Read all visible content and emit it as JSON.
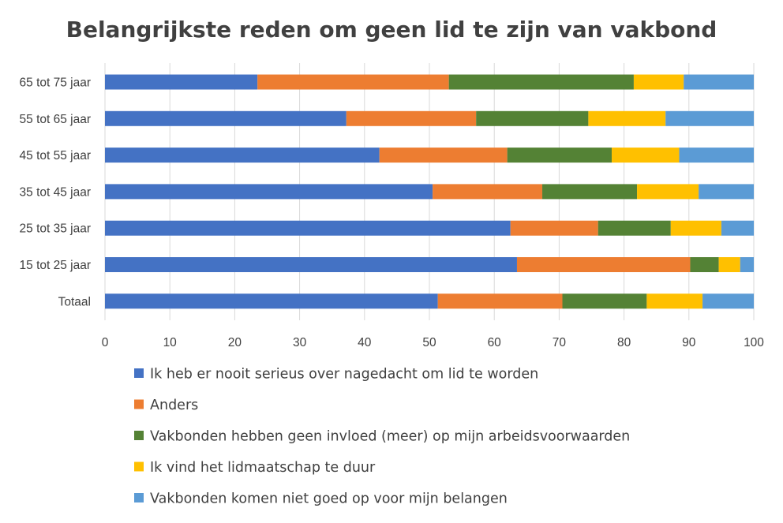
{
  "chart_data": {
    "type": "bar",
    "orientation": "horizontal",
    "stacked": true,
    "title": "Belangrijkste reden om geen lid te zijn van vakbond",
    "categories": [
      "65 tot 75 jaar",
      "55 tot 65 jaar",
      "45 tot 55 jaar",
      "35 tot 45 jaar",
      "25 tot 35 jaar",
      "15 tot 25 jaar",
      "Totaal"
    ],
    "xlim": [
      0,
      100
    ],
    "xticks": [
      "0",
      "10",
      "20",
      "30",
      "40",
      "50",
      "60",
      "70",
      "80",
      "90",
      "100"
    ],
    "grid": true,
    "legend_position": "bottom",
    "series": [
      {
        "name": "Ik heb er nooit serieus over nagedacht om lid te worden",
        "color": "#4472C4",
        "values": [
          23.5,
          37.2,
          42.3,
          50.5,
          62.5,
          63.5,
          51.3
        ]
      },
      {
        "name": "Anders",
        "color": "#ED7D31",
        "values": [
          29.5,
          20.0,
          19.7,
          16.9,
          13.5,
          26.7,
          19.2
        ]
      },
      {
        "name": "Vakbonden hebben geen invloed (meer) op mijn arbeidsvoorwaarden",
        "color": "#548235",
        "values": [
          28.5,
          17.3,
          16.1,
          14.6,
          11.2,
          4.4,
          13.0
        ]
      },
      {
        "name": "Ik vind het lidmaatschap te duur",
        "color": "#FFC000",
        "values": [
          7.7,
          11.9,
          10.4,
          9.5,
          7.8,
          3.3,
          8.6
        ]
      },
      {
        "name": "Vakbonden komen niet goed op voor mijn belangen",
        "color": "#5B9BD5",
        "values": [
          10.8,
          13.6,
          11.5,
          8.5,
          5.0,
          2.1,
          7.9
        ]
      }
    ]
  }
}
